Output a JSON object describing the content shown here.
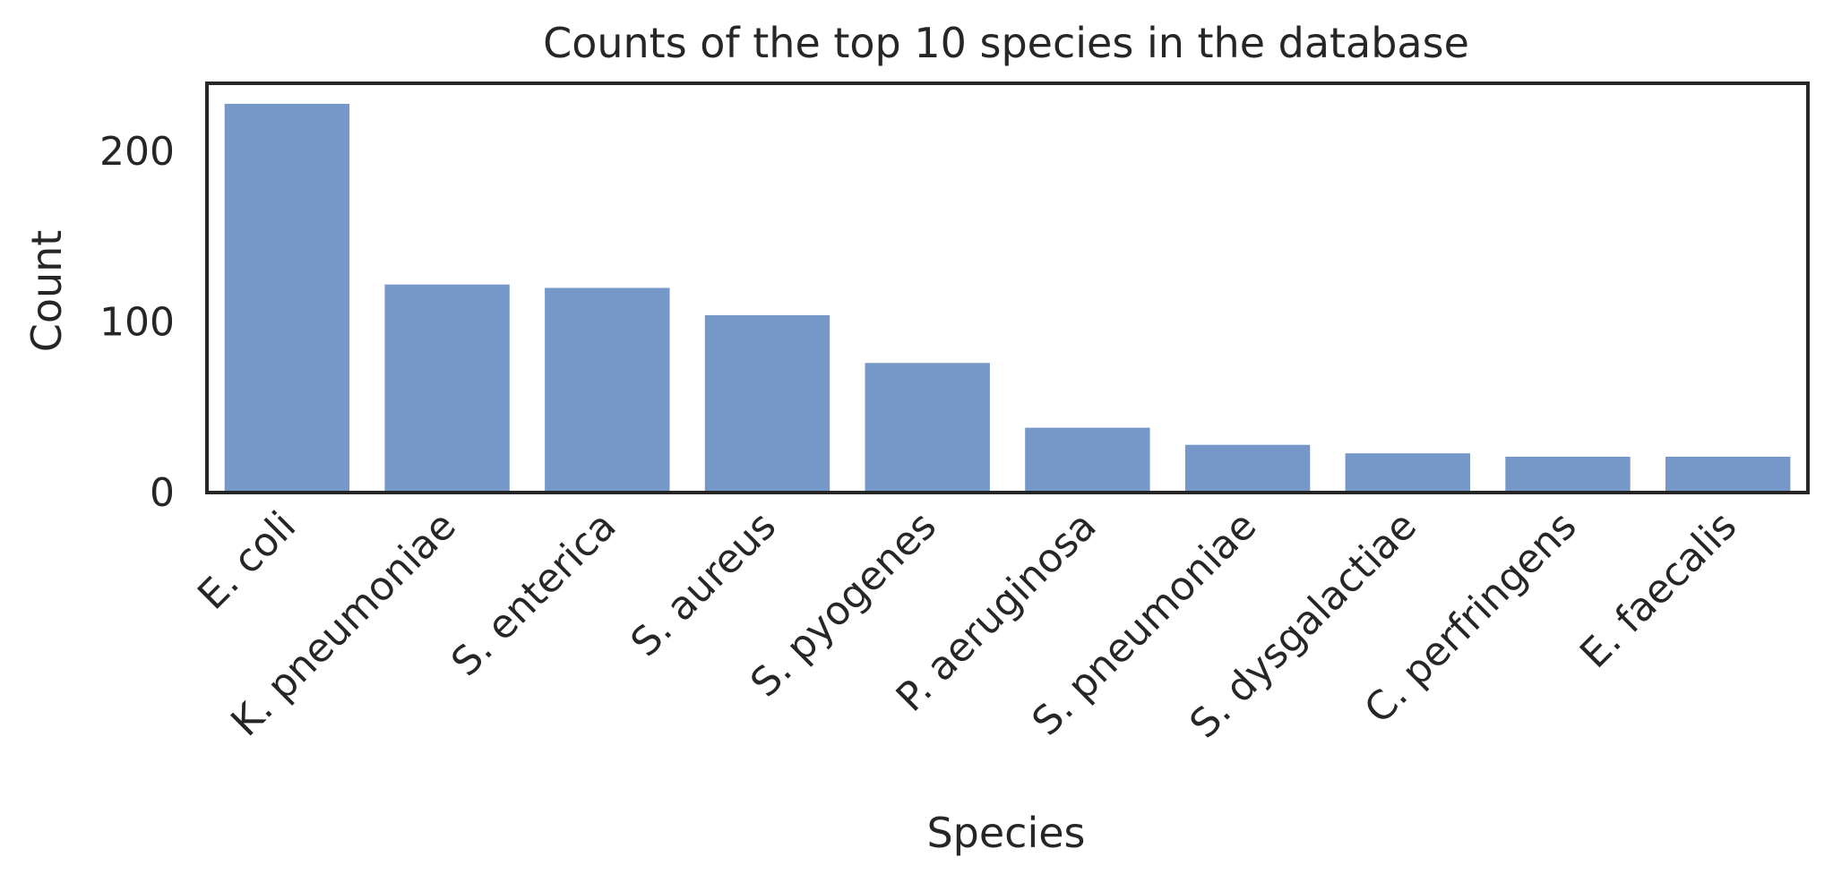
{
  "chart_data": {
    "type": "bar",
    "title": "Counts of the top 10 species in the database",
    "xlabel": "Species",
    "ylabel": "Count",
    "categories": [
      "E. coli",
      "K. pneumoniae",
      "S. enterica",
      "S. aureus",
      "S. pyogenes",
      "P. aeruginosa",
      "S. pneumoniae",
      "S. dysgalactiae",
      "C. perfringens",
      "E. faecalis"
    ],
    "values": [
      228,
      122,
      120,
      104,
      76,
      38,
      28,
      23,
      21,
      21
    ],
    "ylim": [
      0,
      240
    ],
    "yticks": [
      0,
      100,
      200
    ],
    "ytick_labels": [
      "0",
      "100",
      "200"
    ],
    "grid": false,
    "bar_color": "#7698c8",
    "axis_color": "#262626"
  }
}
